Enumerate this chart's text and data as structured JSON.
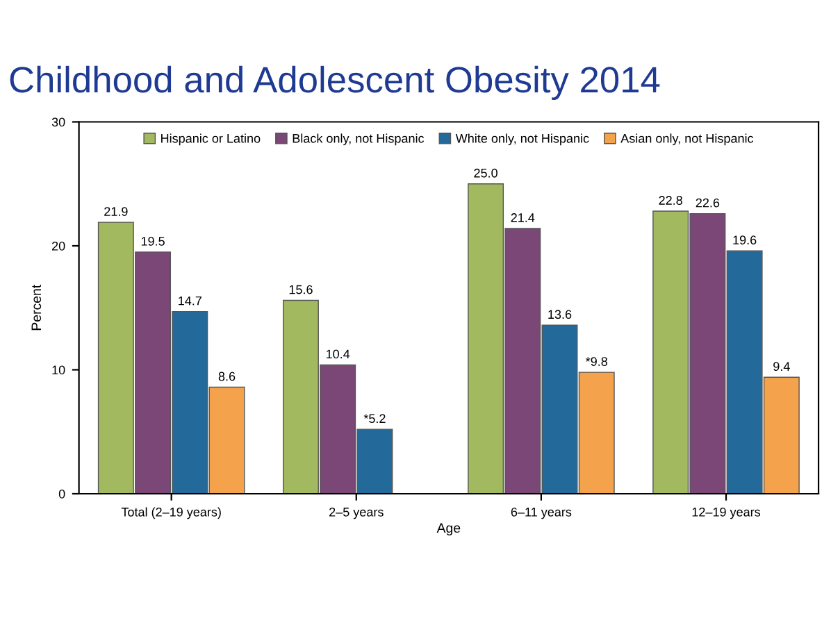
{
  "chart_data": {
    "type": "bar",
    "title": "Childhood and Adolescent Obesity 2014",
    "xlabel": "Age",
    "ylabel": "Percent",
    "categories": [
      "Total (2–19 years)",
      "2–5 years",
      "6–11 years",
      "12–19 years"
    ],
    "series": [
      {
        "name": "Hispanic or Latino",
        "color": "#a3b95f",
        "values": [
          21.9,
          15.6,
          25.0,
          22.8
        ],
        "value_labels": [
          "21.9",
          "15.6",
          "25.0",
          "22.8"
        ]
      },
      {
        "name": "Black only, not Hispanic",
        "color": "#7a4776",
        "values": [
          19.5,
          10.4,
          21.4,
          22.6
        ],
        "value_labels": [
          "19.5",
          "10.4",
          "21.4",
          "22.6"
        ]
      },
      {
        "name": "White only, not Hispanic",
        "color": "#236a9a",
        "values": [
          14.7,
          5.2,
          13.6,
          19.6
        ],
        "value_labels": [
          "14.7",
          "*5.2",
          "13.6",
          "19.6"
        ]
      },
      {
        "name": "Asian only, not Hispanic",
        "color": "#f4a24c",
        "values": [
          8.6,
          null,
          9.8,
          9.4
        ],
        "value_labels": [
          "8.6",
          null,
          "*9.8",
          "9.4"
        ]
      }
    ],
    "ylim": [
      0,
      30
    ],
    "yticks": [
      0,
      10,
      20,
      30
    ],
    "grid": false,
    "legend": "top"
  }
}
